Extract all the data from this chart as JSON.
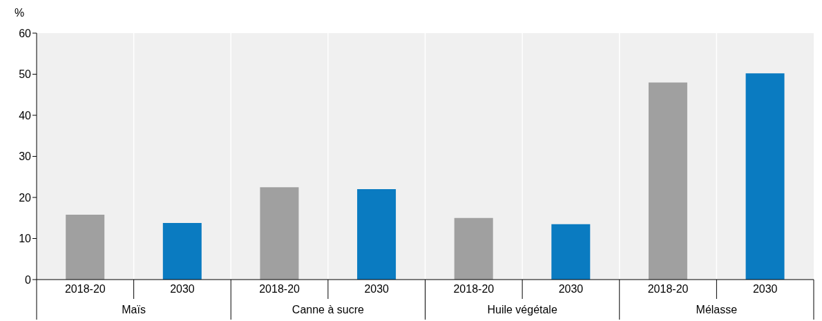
{
  "chart_data": {
    "type": "bar",
    "ylabel": "%",
    "categories": [
      "2018-20",
      "2030",
      "2018-20",
      "2030",
      "2018-20",
      "2030",
      "2018-20",
      "2030"
    ],
    "values": [
      15.8,
      13.8,
      22.5,
      22.0,
      15.0,
      13.5,
      48.0,
      50.2
    ],
    "colors": [
      "#a0a0a0",
      "#0a7bc1",
      "#a0a0a0",
      "#0a7bc1",
      "#a0a0a0",
      "#0a7bc1",
      "#a0a0a0",
      "#0a7bc1"
    ],
    "annotations": [
      "Maïs",
      "Canne à sucre",
      "Huile végétale",
      "Mélasse"
    ],
    "ylim": [
      0,
      60
    ],
    "yticks": [
      0,
      10,
      20,
      30,
      40,
      50,
      60
    ],
    "grid": "x"
  }
}
